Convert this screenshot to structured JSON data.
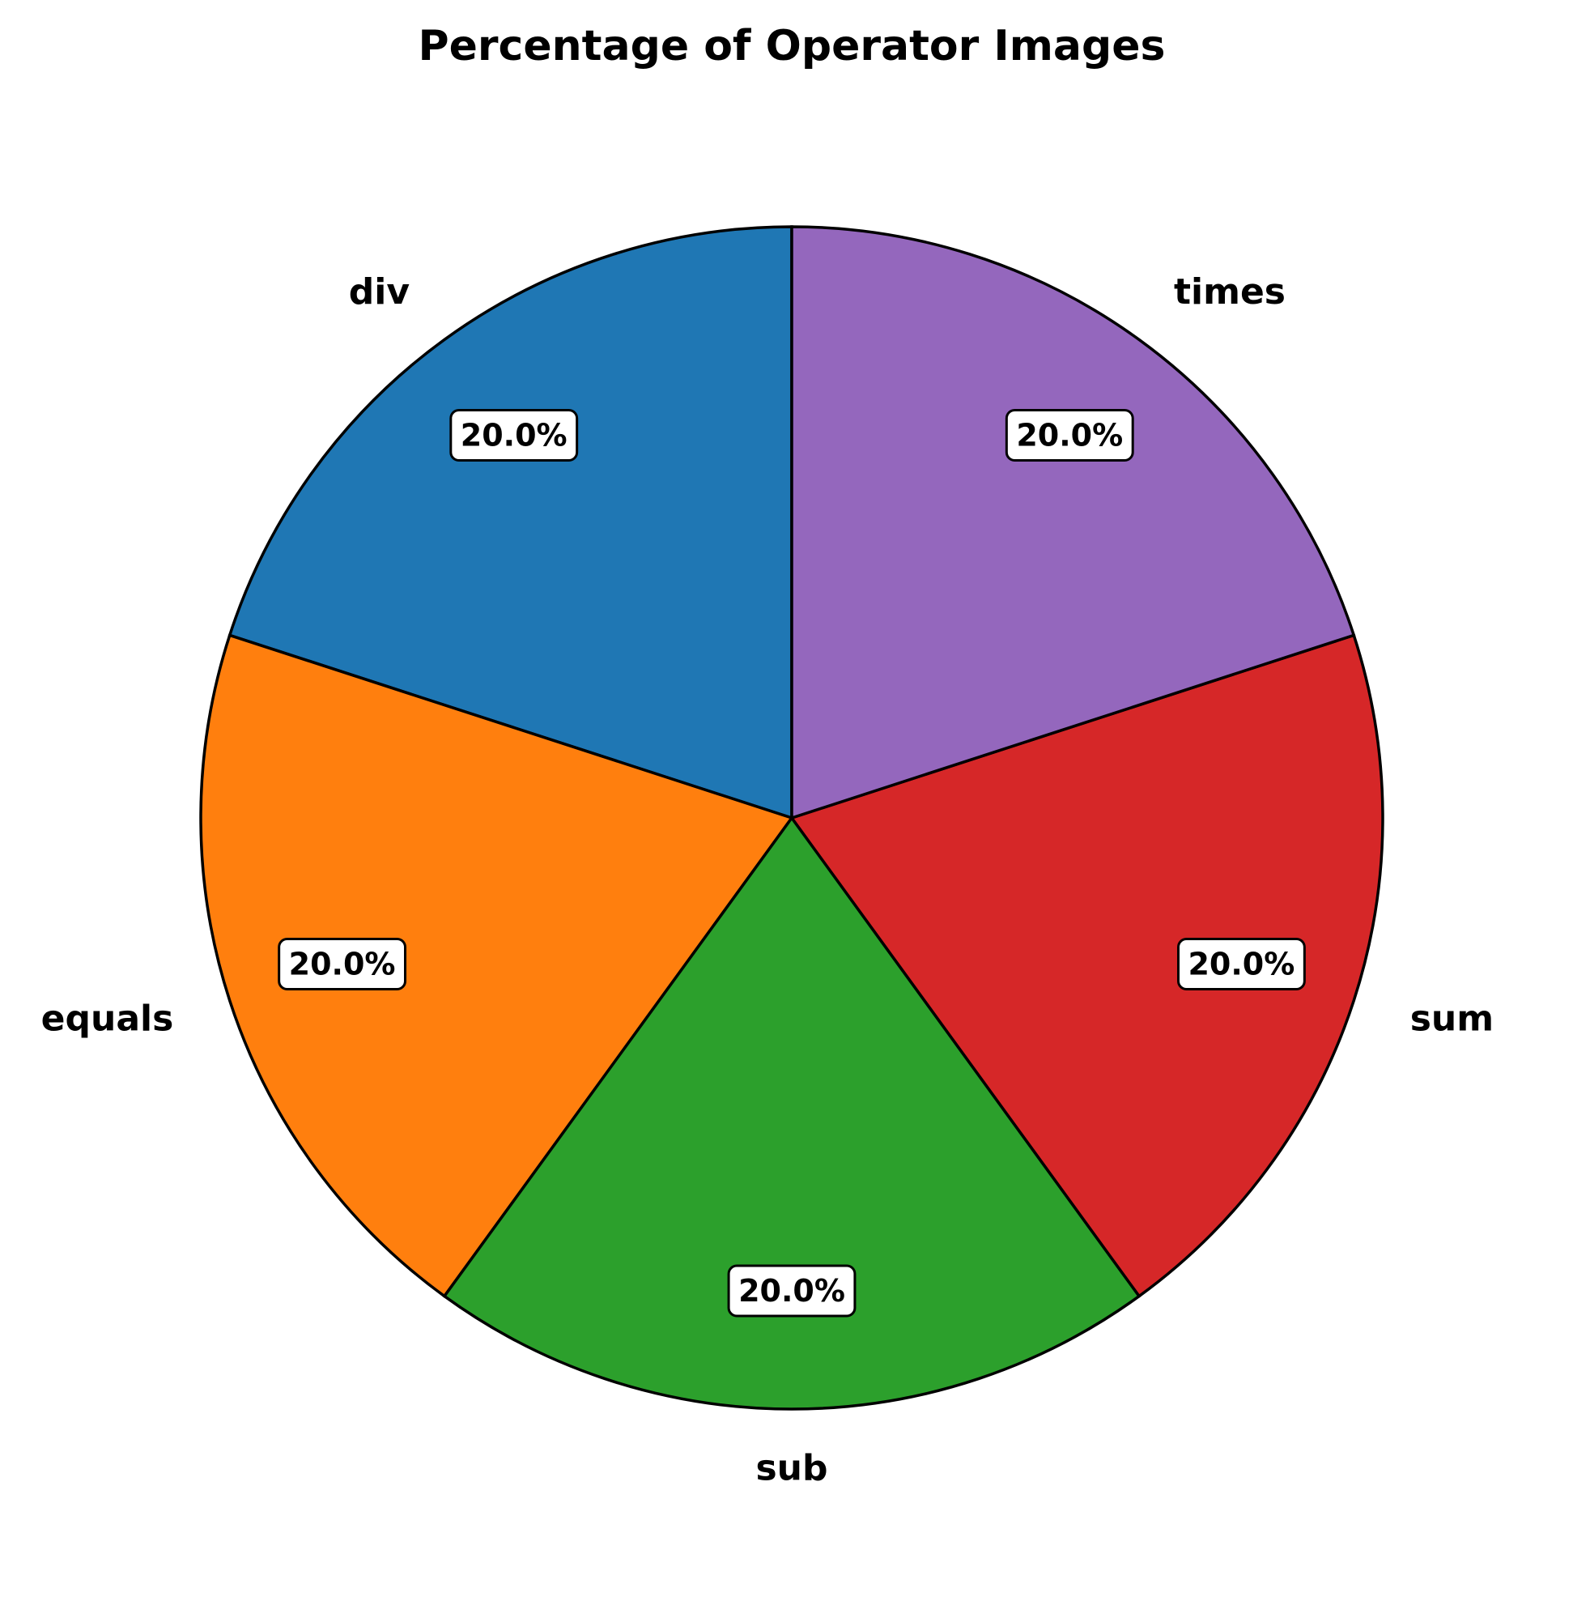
{
  "chart_data": {
    "type": "pie",
    "title": "Percentage of Operator Images",
    "categories": [
      "div",
      "equals",
      "sub",
      "sum",
      "times"
    ],
    "values": [
      20.0,
      20.0,
      20.0,
      20.0,
      20.0
    ],
    "percent_labels": [
      "20.0%",
      "20.0%",
      "20.0%",
      "20.0%",
      "20.0%"
    ],
    "colors": [
      "#1f77b4",
      "#ff7f0e",
      "#2ca02c",
      "#d62728",
      "#9467bd"
    ],
    "start_angle_deg": 90,
    "direction": "counterclockwise",
    "legend": "none"
  }
}
